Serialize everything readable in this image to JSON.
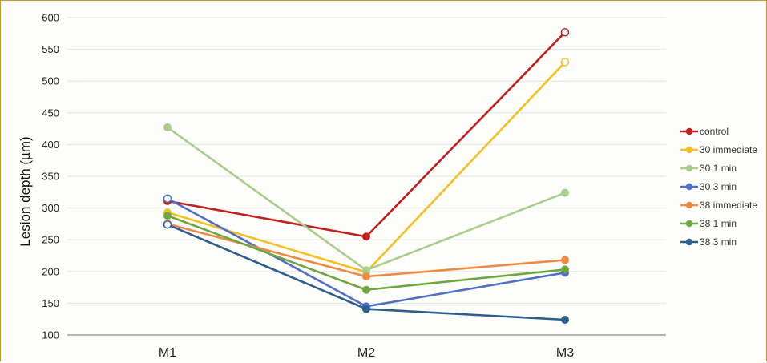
{
  "chart_data": {
    "type": "line",
    "title": "",
    "xlabel": "",
    "ylabel": "Lesion depth (µm)",
    "categories": [
      "M1",
      "M2",
      "M3"
    ],
    "ylim": [
      100,
      600
    ],
    "yticks": [
      100,
      150,
      200,
      250,
      300,
      350,
      400,
      450,
      500,
      550,
      600
    ],
    "grid": true,
    "legend_position": "right",
    "series": [
      {
        "name": "control",
        "color": "#c0201f",
        "values": [
          311,
          255,
          577
        ],
        "hollow": [
          false,
          false,
          true
        ]
      },
      {
        "name": "30 immediate",
        "color": "#f5bf22",
        "values": [
          293,
          199,
          530
        ],
        "hollow": [
          false,
          false,
          true
        ]
      },
      {
        "name": "30 1 min",
        "color": "#a7ce8c",
        "values": [
          427,
          202,
          324
        ],
        "hollow": [
          false,
          false,
          false
        ]
      },
      {
        "name": "30 3 min",
        "color": "#4f70c4",
        "values": [
          315,
          145,
          198
        ],
        "hollow": [
          true,
          false,
          false
        ]
      },
      {
        "name": "38 immediate",
        "color": "#ef8a45",
        "values": [
          275,
          192,
          218
        ],
        "hollow": [
          false,
          false,
          false
        ]
      },
      {
        "name": "38 1 min",
        "color": "#6ea641",
        "values": [
          288,
          171,
          203
        ],
        "hollow": [
          false,
          false,
          false
        ]
      },
      {
        "name": "38 3 min",
        "color": "#2d5e8f",
        "values": [
          274,
          141,
          124
        ],
        "hollow": [
          true,
          false,
          false
        ]
      }
    ]
  }
}
